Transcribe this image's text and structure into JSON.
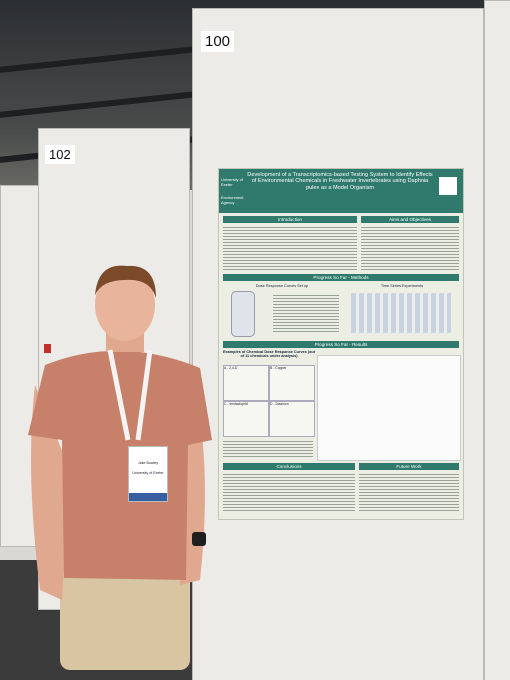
{
  "board_labels": [
    "100",
    "102"
  ],
  "poster": {
    "title": "Development of a Transcriptomics-based Testing System to Identify Effects of Environmental Chemicals in Freshwater Invertebrates using Daphnia pulex as a Model Organism",
    "logos": [
      "University of Exeter",
      "Environment Agency"
    ],
    "sections": [
      "Introduction",
      "Aims and Objectives",
      "Progress So Far - Methods",
      "Progress So Far - Results",
      "Conclusions",
      "Future Work"
    ],
    "methods": [
      "Dose Response Curves Set up",
      "Time Series Experiments"
    ],
    "results_heading": "Examples of Chemical Dose Response Curves (out of 11 chemicals under analysis)",
    "panels": [
      "A - 2,4-D",
      "B - Copper",
      "C - Imidacloprid",
      "D - Diazinon"
    ]
  },
  "badge": [
    "Jake Bowley",
    "University of Exeter"
  ]
}
